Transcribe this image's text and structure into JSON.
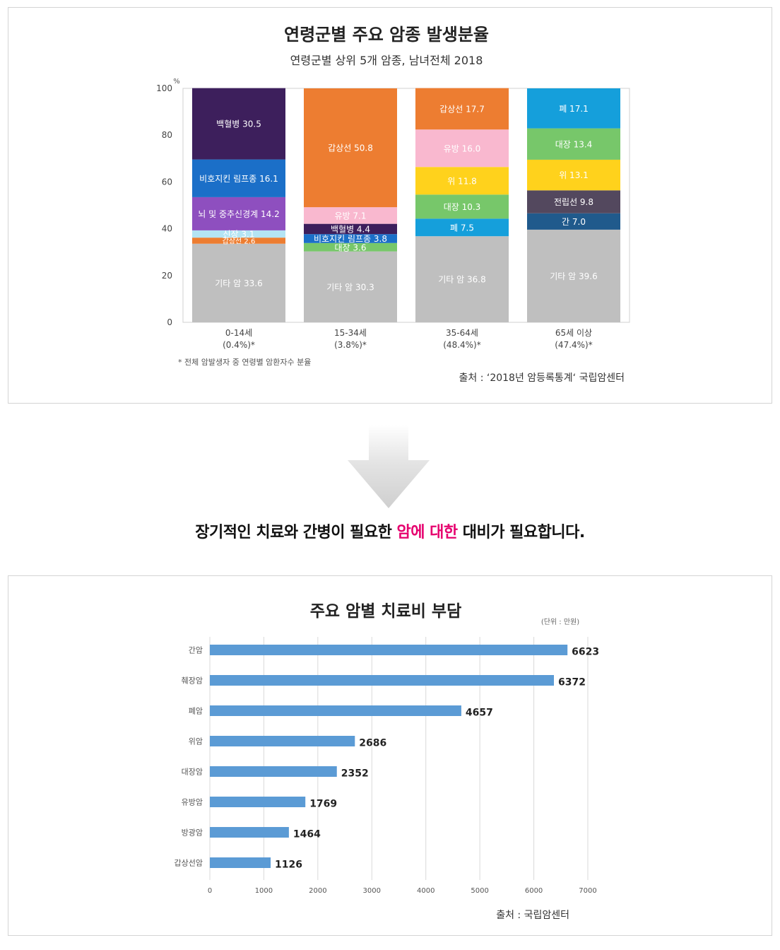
{
  "chart_data": [
    {
      "type": "bar",
      "stacked": true,
      "title": "연령군별 주요 암종 발생분율",
      "subtitle": "연령군별 상위 5개 암종, 남녀전체 2018",
      "ylabel": "%",
      "ylim": [
        0,
        100
      ],
      "yticks": [
        "0",
        "20",
        "40",
        "60",
        "80",
        "100"
      ],
      "categories": [
        {
          "label": "0-14세",
          "sub": "(0.4%)*"
        },
        {
          "label": "15-34세",
          "sub": "(3.8%)*"
        },
        {
          "label": "35-64세",
          "sub": "(48.4%)*"
        },
        {
          "label": "65세 이상",
          "sub": "(47.4%)*"
        }
      ],
      "stacks": [
        [
          {
            "label": "기타 암 33.6",
            "value": 33.6,
            "color": "#bfbfbf"
          },
          {
            "label": "갑상선 2.6",
            "value": 2.6,
            "color": "#ed7d31"
          },
          {
            "label": "신장 3.1",
            "value": 3.1,
            "color": "#b4e4f4"
          },
          {
            "label": "뇌 및 중추신경계 14.2",
            "value": 14.2,
            "color": "#8e4fbf"
          },
          {
            "label": "비호지킨 림프종 16.1",
            "value": 16.1,
            "color": "#1b6fc8"
          },
          {
            "label": "백혈병 30.5",
            "value": 30.5,
            "color": "#3d1f5c"
          }
        ],
        [
          {
            "label": "기타 암 30.3",
            "value": 30.3,
            "color": "#bfbfbf"
          },
          {
            "label": "대장 3.6",
            "value": 3.6,
            "color": "#77c76a"
          },
          {
            "label": "비호지킨 림프종 3.8",
            "value": 3.8,
            "color": "#1b6fc8"
          },
          {
            "label": "백혈병 4.4",
            "value": 4.4,
            "color": "#3d1f5c"
          },
          {
            "label": "유방 7.1",
            "value": 7.1,
            "color": "#f9b8cf"
          },
          {
            "label": "갑상선 50.8",
            "value": 50.8,
            "color": "#ed7d31"
          }
        ],
        [
          {
            "label": "기타 암 36.8",
            "value": 36.8,
            "color": "#bfbfbf"
          },
          {
            "label": "폐 7.5",
            "value": 7.5,
            "color": "#159fdb"
          },
          {
            "label": "대장 10.3",
            "value": 10.3,
            "color": "#77c76a"
          },
          {
            "label": "위 11.8",
            "value": 11.8,
            "color": "#ffd21c"
          },
          {
            "label": "유방 16.0",
            "value": 16.0,
            "color": "#f9b8cf"
          },
          {
            "label": "갑상선 17.7",
            "value": 17.7,
            "color": "#ed7d31"
          }
        ],
        [
          {
            "label": "기타 암 39.6",
            "value": 39.6,
            "color": "#bfbfbf"
          },
          {
            "label": "간 7.0",
            "value": 7.0,
            "color": "#205a8c"
          },
          {
            "label": "전립선 9.8",
            "value": 9.8,
            "color": "#53485e"
          },
          {
            "label": "위 13.1",
            "value": 13.1,
            "color": "#ffd21c"
          },
          {
            "label": "대장 13.4",
            "value": 13.4,
            "color": "#77c76a"
          },
          {
            "label": "폐 17.1",
            "value": 17.1,
            "color": "#159fdb"
          }
        ]
      ],
      "footnote": "* 전체 암발생자 중 연령별 암환자수 분율",
      "source": "출처 : ‘2018년 암등록통계‘ 국립암센터"
    },
    {
      "type": "bar",
      "orientation": "horizontal",
      "title": "주요 암별 치료비 부담",
      "unit": "(단위 : 만원)",
      "categories": [
        "간암",
        "췌장암",
        "폐암",
        "위암",
        "대장암",
        "유방암",
        "방광암",
        "갑상선암"
      ],
      "values": [
        6623,
        6372,
        4657,
        2686,
        2352,
        1769,
        1464,
        1126
      ],
      "xlim": [
        0,
        7000
      ],
      "xticks": [
        "0",
        "1000",
        "2000",
        "3000",
        "4000",
        "5000",
        "6000",
        "7000"
      ],
      "grid": true,
      "bar_color": "#5b9bd5",
      "source": "출처 : 국립암센터"
    }
  ],
  "headline": {
    "before": "장기적인 치료와 간병이 필요한 ",
    "highlight": "암에 대한",
    "after": " 대비가 필요합니다."
  },
  "colors": {
    "highlight": "#e6006e",
    "arrow": "#e0e0e0"
  }
}
